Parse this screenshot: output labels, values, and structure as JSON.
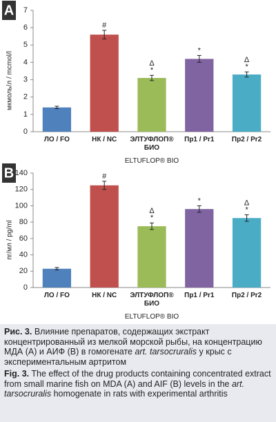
{
  "chart_data": [
    {
      "type": "bar",
      "panel": "A",
      "ylabel": "мкмоль/л / mcmol/l",
      "categories": [
        "ЛО / FO",
        "НК / NC",
        "ЭЛТУФЛОП® БИО",
        "Пр1 / Pr1",
        "Пр2 / Pr2"
      ],
      "category_sublabels": [
        null,
        null,
        "ELTUFLOP® BIO",
        null,
        null
      ],
      "values": [
        1.4,
        5.6,
        3.1,
        4.2,
        3.3
      ],
      "errors": [
        0.07,
        0.25,
        0.15,
        0.2,
        0.15
      ],
      "annotations": [
        [],
        [
          "#"
        ],
        [
          "Δ",
          "*"
        ],
        [
          "*"
        ],
        [
          "Δ",
          "*"
        ]
      ],
      "colors": [
        "#4f81bd",
        "#c0504d",
        "#9bbb59",
        "#8064a2",
        "#4bacc6"
      ],
      "ylim": [
        0,
        7
      ],
      "yticks": [
        0,
        1,
        2,
        3,
        4,
        5,
        6,
        7
      ]
    },
    {
      "type": "bar",
      "panel": "B",
      "ylabel": "пг/мл / pg/ml",
      "categories": [
        "ЛО / FO",
        "НК / NC",
        "ЭЛТУФЛОП® БИО",
        "Пр1 / Pr1",
        "Пр2 / Pr2"
      ],
      "category_sublabels": [
        null,
        null,
        "ELTUFLOP® BIO",
        null,
        null
      ],
      "values": [
        23,
        125,
        75,
        96,
        85
      ],
      "errors": [
        1.5,
        5,
        4,
        4,
        4
      ],
      "annotations": [
        [],
        [
          "#"
        ],
        [
          "Δ",
          "*"
        ],
        [
          "*"
        ],
        [
          "Δ",
          "*"
        ]
      ],
      "colors": [
        "#4f81bd",
        "#c0504d",
        "#9bbb59",
        "#8064a2",
        "#4bacc6"
      ],
      "ylim": [
        0,
        140
      ],
      "yticks": [
        0,
        20,
        40,
        60,
        80,
        100,
        120,
        140
      ]
    }
  ],
  "caption": {
    "ru": {
      "label": "Рис. 3.",
      "text": "Влияние препаратов, содержащих экстракт концентрированный из мелкой морской рыбы, на концентрацию МДА (А) и АИФ (В) в гомогенате",
      "italic": "art. tarsocruralis",
      "after": "у крыс с экспериментальным артритом"
    },
    "en": {
      "label": "Fig. 3.",
      "text": "The effect of the drug products containing concentrated extract from small marine fish on MDA (A) and AIF (B) levels in the",
      "italic": "art. tarsocruralis",
      "after": "homogenate in rats with experimental arthritis"
    }
  }
}
